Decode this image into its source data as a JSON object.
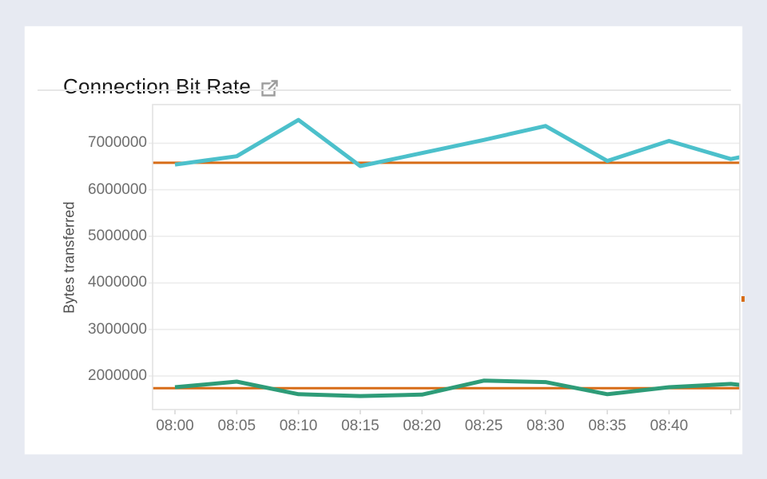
{
  "header": {
    "title": "Connection Bit Rate"
  },
  "colors": {
    "page_bg": "#e7eaf2",
    "card_bg": "#ffffff",
    "series_high": "#4cc0cb",
    "series_low": "#2e9c78",
    "reference": "#d76c17",
    "gridline": "#ececec",
    "plot_frame": "#e2e2e2",
    "tick_mark": "#d8d8d8",
    "tick_text": "#6e6e6e"
  },
  "chart_data": {
    "type": "line",
    "title": "Connection Bit Rate",
    "xlabel": "",
    "ylabel": "Bytes transferred",
    "legend": "none",
    "grid": "horizontal-only",
    "xlim_minutes": [
      -1.81,
      45.73
    ],
    "ylim": [
      1280000,
      7830000
    ],
    "y_ticks": [
      {
        "label": "7000000",
        "value": 7000000
      },
      {
        "label": "6000000",
        "value": 6000000
      },
      {
        "label": "5000000",
        "value": 5000000
      },
      {
        "label": "4000000",
        "value": 4000000
      },
      {
        "label": "3000000",
        "value": 3000000
      },
      {
        "label": "2000000",
        "value": 2000000
      }
    ],
    "x_ticks": [
      {
        "label": "08:00",
        "minutes": 0
      },
      {
        "label": "08:05",
        "minutes": 5
      },
      {
        "label": "08:10",
        "minutes": 10
      },
      {
        "label": "08:15",
        "minutes": 15
      },
      {
        "label": "08:20",
        "minutes": 20
      },
      {
        "label": "08:25",
        "minutes": 25
      },
      {
        "label": "08:30",
        "minutes": 30
      },
      {
        "label": "08:35",
        "minutes": 35
      },
      {
        "label": "08:40",
        "minutes": 40
      },
      {
        "label": "",
        "minutes": 45
      }
    ],
    "series": [
      {
        "name": "bytes-transferred-high",
        "color": "#4cc0cb",
        "stroke_width": 5,
        "points": [
          {
            "t": 0,
            "v": 6540000
          },
          {
            "t": 5,
            "v": 6720000
          },
          {
            "t": 10,
            "v": 7500000
          },
          {
            "t": 15,
            "v": 6510000
          },
          {
            "t": 20,
            "v": 6790000
          },
          {
            "t": 25,
            "v": 7070000
          },
          {
            "t": 30,
            "v": 7370000
          },
          {
            "t": 35,
            "v": 6620000
          },
          {
            "t": 40,
            "v": 7050000
          },
          {
            "t": 45,
            "v": 6660000
          },
          {
            "t": 45.73,
            "v": 6700000
          }
        ]
      },
      {
        "name": "bytes-transferred-low",
        "color": "#2e9c78",
        "stroke_width": 5,
        "points": [
          {
            "t": 0,
            "v": 1760000
          },
          {
            "t": 5,
            "v": 1880000
          },
          {
            "t": 10,
            "v": 1610000
          },
          {
            "t": 15,
            "v": 1570000
          },
          {
            "t": 20,
            "v": 1600000
          },
          {
            "t": 25,
            "v": 1900000
          },
          {
            "t": 30,
            "v": 1870000
          },
          {
            "t": 35,
            "v": 1610000
          },
          {
            "t": 40,
            "v": 1760000
          },
          {
            "t": 45,
            "v": 1830000
          },
          {
            "t": 45.73,
            "v": 1810000
          }
        ]
      }
    ],
    "reference_lines": [
      {
        "name": "upper-threshold",
        "color": "#d76c17",
        "value": 6580000,
        "stroke_width": 3
      },
      {
        "name": "lower-threshold",
        "color": "#d76c17",
        "value": 1740000,
        "stroke_width": 3
      }
    ]
  }
}
